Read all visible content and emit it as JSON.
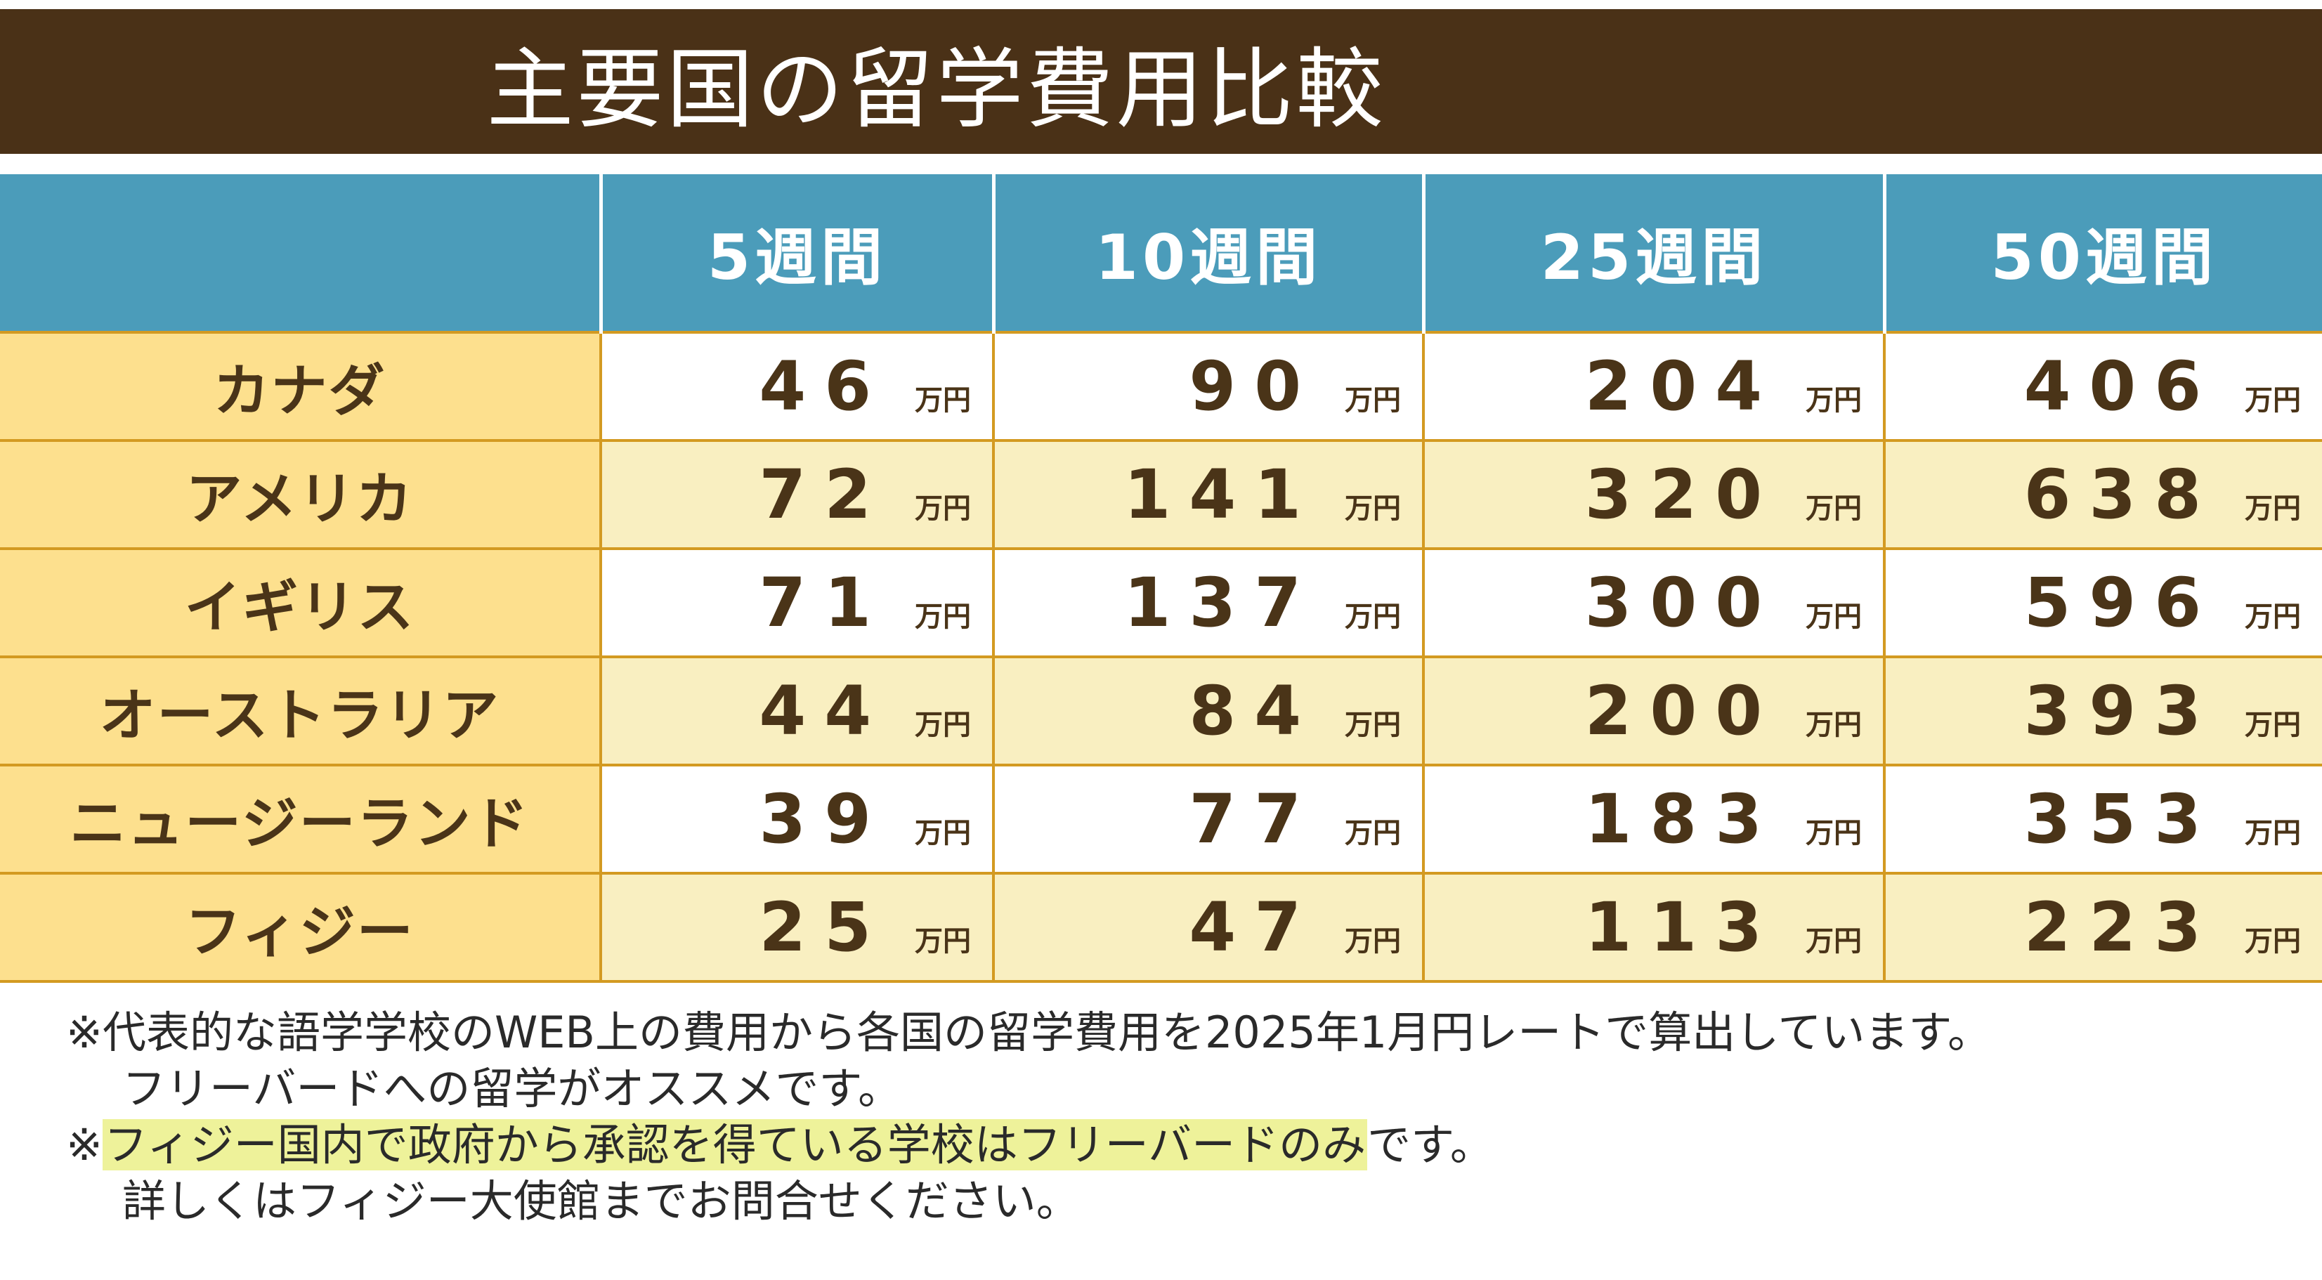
{
  "title": "主要国の留学費用比較",
  "columns": [
    "",
    "5週間",
    "10週間",
    "25週間",
    "50週間"
  ],
  "unit": "万円",
  "rows": [
    {
      "country": "カナダ",
      "values": [
        "46",
        "90",
        "204",
        "406"
      ]
    },
    {
      "country": "アメリカ",
      "values": [
        "72",
        "141",
        "320",
        "638"
      ]
    },
    {
      "country": "イギリス",
      "values": [
        "71",
        "137",
        "300",
        "596"
      ]
    },
    {
      "country": "オーストラリア",
      "values": [
        "44",
        "84",
        "200",
        "393"
      ]
    },
    {
      "country": "ニュージーランド",
      "values": [
        "39",
        "77",
        "183",
        "353"
      ]
    },
    {
      "country": "フィジー",
      "values": [
        "25",
        "47",
        "113",
        "223"
      ]
    }
  ],
  "notes": {
    "line1": "※代表的な語学学校のWEB上の費用から各国の留学費用を2025年1月円レートで算出しています。",
    "line2": "フリーバードへの留学がオススメです。",
    "line3_mark": "※",
    "line3_highlight": "フィジー国内で政府から承認を得ている学校はフリーバードのみ",
    "line3_rest": "です。",
    "line4": "詳しくはフィジー大使館までお問合せください。"
  },
  "colors": {
    "title_bg": "#4a3117",
    "header_bg": "#4b9cba",
    "country_bg": "#fde08e",
    "row_alt_bg": "#f9efc1",
    "border": "#d39a21",
    "highlight": "#eef29a"
  },
  "chart_data": {
    "type": "table",
    "title": "主要国の留学費用比較",
    "categories": [
      "5週間",
      "10週間",
      "25週間",
      "50週間"
    ],
    "unit": "万円",
    "series": [
      {
        "name": "カナダ",
        "values": [
          46,
          90,
          204,
          406
        ]
      },
      {
        "name": "アメリカ",
        "values": [
          72,
          141,
          320,
          638
        ]
      },
      {
        "name": "イギリス",
        "values": [
          71,
          137,
          300,
          596
        ]
      },
      {
        "name": "オーストラリア",
        "values": [
          44,
          84,
          200,
          393
        ]
      },
      {
        "name": "ニュージーランド",
        "values": [
          39,
          77,
          183,
          353
        ]
      },
      {
        "name": "フィジー",
        "values": [
          25,
          47,
          113,
          223
        ]
      }
    ]
  }
}
